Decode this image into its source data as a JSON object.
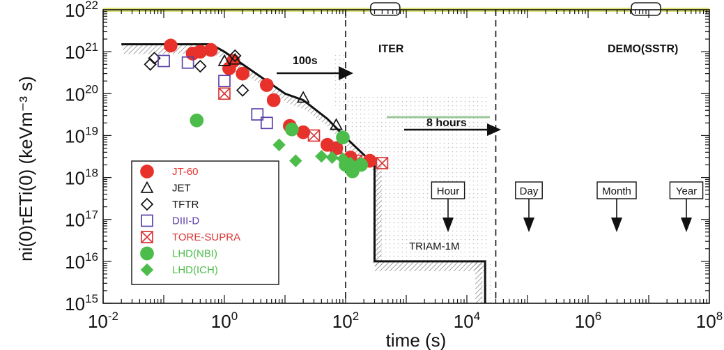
{
  "chart_data": {
    "type": "scatter",
    "xlabel": "time (s)",
    "ylabel": "ni(0)τETi(0) (keVm⁻³ s)",
    "x_scale": "log",
    "y_scale": "log",
    "xlim": [
      0.01,
      100000000
    ],
    "ylim": [
      1000000000000000.0,
      1e+22
    ],
    "x_ticks": [
      {
        "value": 0.01,
        "base": "10",
        "exp": "-2"
      },
      {
        "value": 1,
        "base": "10",
        "exp": "0"
      },
      {
        "value": 100,
        "base": "10",
        "exp": "2"
      },
      {
        "value": 10000,
        "base": "10",
        "exp": "4"
      },
      {
        "value": 1000000,
        "base": "10",
        "exp": "6"
      },
      {
        "value": 100000000,
        "base": "10",
        "exp": "8"
      }
    ],
    "y_ticks": [
      {
        "value": 1000000000000000.0,
        "base": "10",
        "exp": "15"
      },
      {
        "value": 1e+16,
        "base": "10",
        "exp": "16"
      },
      {
        "value": 1e+17,
        "base": "10",
        "exp": "17"
      },
      {
        "value": 1e+18,
        "base": "10",
        "exp": "18"
      },
      {
        "value": 1e+19,
        "base": "10",
        "exp": "19"
      },
      {
        "value": 1e+20,
        "base": "10",
        "exp": "20"
      },
      {
        "value": 1e+21,
        "base": "10",
        "exp": "21"
      },
      {
        "value": 1e+22,
        "base": "10",
        "exp": "22"
      }
    ],
    "legend_position": "bottom-left",
    "series": [
      {
        "name": "JT-60",
        "marker": "circle",
        "color": "#e8312a",
        "filled": true,
        "points": [
          [
            0.13,
            1.4e+21
          ],
          [
            0.3,
            9e+20
          ],
          [
            0.4,
            1e+21
          ],
          [
            0.6,
            1.1e+21
          ],
          [
            1.2,
            4e+20
          ],
          [
            1.4,
            6e+20
          ],
          [
            2,
            3e+20
          ],
          [
            5,
            1.6e+20
          ],
          [
            6.5,
            7e+19
          ],
          [
            12,
            1.7e+19
          ],
          [
            20,
            1.2e+19
          ],
          [
            50,
            6e+18
          ],
          [
            70,
            5e+18
          ],
          [
            120,
            3e+18
          ],
          [
            250,
            2.5e+18
          ]
        ]
      },
      {
        "name": "JET",
        "marker": "triangle",
        "color": "#111111",
        "filled": false,
        "points": [
          [
            1,
            6e+20
          ],
          [
            1.5,
            6.5e+20
          ],
          [
            20,
            8e+19
          ],
          [
            70,
            1.8e+19
          ]
        ]
      },
      {
        "name": "TFTR",
        "marker": "diamond",
        "color": "#111111",
        "filled": false,
        "points": [
          [
            0.06,
            5e+20
          ],
          [
            0.07,
            7e+20
          ],
          [
            0.4,
            4.5e+20
          ],
          [
            1.5,
            8e+20
          ],
          [
            2,
            1.2e+20
          ]
        ]
      },
      {
        "name": "DIII-D",
        "marker": "square",
        "color": "#5b3fa6",
        "filled": false,
        "points": [
          [
            0.1,
            6e+20
          ],
          [
            0.25,
            5.5e+20
          ],
          [
            1,
            2e+20
          ],
          [
            3.5,
            3.2e+19
          ],
          [
            5,
            2e+19
          ]
        ]
      },
      {
        "name": "TORE-SUPRA",
        "marker": "square-x",
        "color": "#d83636",
        "filled": false,
        "points": [
          [
            1,
            1e+20
          ],
          [
            30,
            1e+19
          ],
          [
            70,
            5e+18
          ],
          [
            150,
            2.5e+18
          ],
          [
            400,
            2.2e+18
          ]
        ]
      },
      {
        "name": "LHD(NBI)",
        "marker": "circle",
        "color": "#4cbd4a",
        "filled": true,
        "points": [
          [
            0.35,
            2.3e+19
          ],
          [
            13,
            1.4e+19
          ],
          [
            90,
            9e+18
          ],
          [
            100,
            2e+18
          ],
          [
            130,
            1.4e+18
          ],
          [
            180,
            2e+18
          ]
        ]
      },
      {
        "name": "LHD(ICH)",
        "marker": "diamond",
        "color": "#4cbd4a",
        "filled": true,
        "points": [
          [
            8,
            6e+18
          ],
          [
            15,
            2.5e+18
          ],
          [
            40,
            3.2e+18
          ],
          [
            60,
            3e+18
          ],
          [
            90,
            2.8e+18
          ],
          [
            120,
            2.2e+18
          ]
        ]
      }
    ],
    "envelope": [
      [
        0.02,
        1.5e+21
      ],
      [
        0.6,
        1.5e+21
      ],
      [
        1,
        1e+21
      ],
      [
        2,
        5e+20
      ],
      [
        5,
        2e+20
      ],
      [
        10,
        1e+20
      ],
      [
        20,
        7e+19
      ],
      [
        50,
        2.5e+19
      ],
      [
        100,
        9e+18
      ],
      [
        300,
        2e+18
      ],
      [
        300,
        1e+16
      ],
      [
        20000,
        1e+16
      ],
      [
        20000,
        1000000000000000.0
      ]
    ],
    "target_line": {
      "y": 1e+22
    },
    "vlines": [
      {
        "x": 100
      },
      {
        "x": 30000
      }
    ],
    "annotations": [
      {
        "text": "100s",
        "x": 100,
        "y": 1.5e+21
      },
      {
        "text": "ITER",
        "x": 350,
        "y": 3e+21
      },
      {
        "text": "DEMO(SSTR)",
        "x": 8000000,
        "y": 3e+21
      },
      {
        "text": "8 hours",
        "x": 30000,
        "y": 4e+19
      },
      {
        "text": "Hour",
        "x": 3600,
        "y": 2e+17
      },
      {
        "text": "Day",
        "x": 86400,
        "y": 2e+17
      },
      {
        "text": "Month",
        "x": 2600000,
        "y": 2e+17
      },
      {
        "text": "Year",
        "x": 31500000,
        "y": 2e+17
      },
      {
        "text": "TRIAM-1M",
        "x": 3500,
        "y": 1.6e+16
      }
    ]
  }
}
